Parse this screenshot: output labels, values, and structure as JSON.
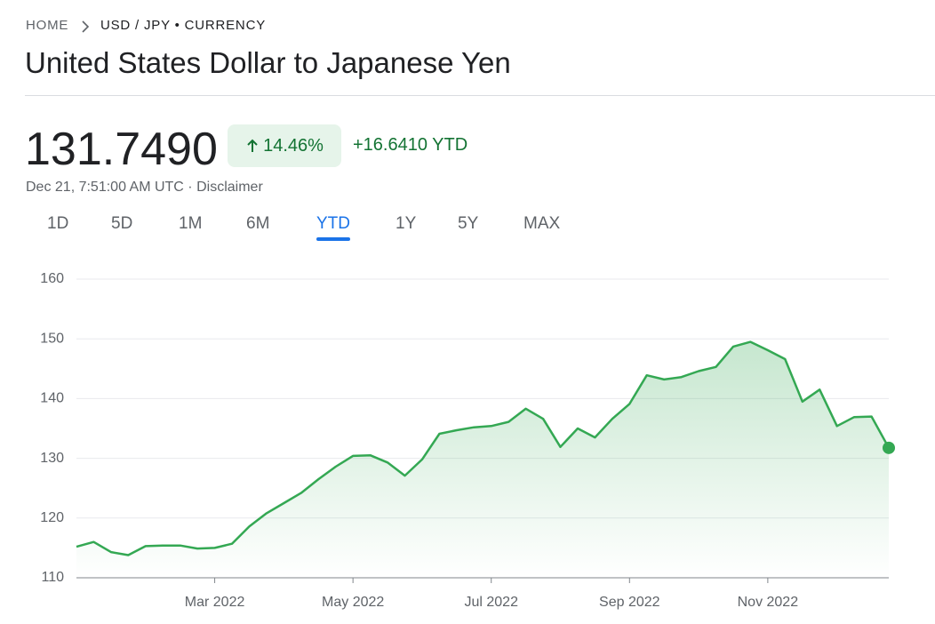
{
  "breadcrumb": {
    "home": "HOME",
    "current": "USD / JPY • CURRENCY"
  },
  "title": "United States Dollar to Japanese Yen",
  "quote": {
    "price": "131.7490",
    "change_percent": "14.46%",
    "change": "+16.6410 YTD",
    "timestamp": "Dec 21, 7:51:00 AM UTC ·",
    "disclaimer": "Disclaimer"
  },
  "ranges": [
    "1D",
    "5D",
    "1M",
    "6M",
    "YTD",
    "1Y",
    "5Y",
    "MAX"
  ],
  "selected_range": 4,
  "chart_data": {
    "type": "line",
    "categories": [
      null,
      null,
      null,
      null,
      null,
      null,
      null,
      null,
      "Mar 2022",
      null,
      null,
      null,
      null,
      null,
      null,
      null,
      "May 2022",
      null,
      null,
      null,
      null,
      null,
      null,
      null,
      "Jul 2022",
      null,
      null,
      null,
      null,
      null,
      null,
      null,
      "Sep 2022",
      null,
      null,
      null,
      null,
      null,
      null,
      null,
      "Nov 2022",
      null,
      null,
      null,
      null,
      null,
      null,
      null
    ],
    "series": [
      {
        "name": "USD / JPY",
        "color": "#34a853",
        "values": [
          115.2,
          116.0,
          114.3,
          113.8,
          115.3,
          115.4,
          115.4,
          114.9,
          115.0,
          115.7,
          118.6,
          120.8,
          122.5,
          124.2,
          126.5,
          128.6,
          130.4,
          130.5,
          129.3,
          127.1,
          129.8,
          134.1,
          134.7,
          135.2,
          135.4,
          136.1,
          138.3,
          136.6,
          131.9,
          135.0,
          133.5,
          136.6,
          139.1,
          143.9,
          143.2,
          143.6,
          144.6,
          145.3,
          148.7,
          149.5,
          148.1,
          146.6,
          139.5,
          141.5,
          135.4,
          136.9,
          137.0,
          131.749
        ]
      }
    ],
    "ylim": [
      110,
      160
    ],
    "yticks": [
      110,
      120,
      130,
      140,
      150,
      160
    ],
    "grid": true
  }
}
